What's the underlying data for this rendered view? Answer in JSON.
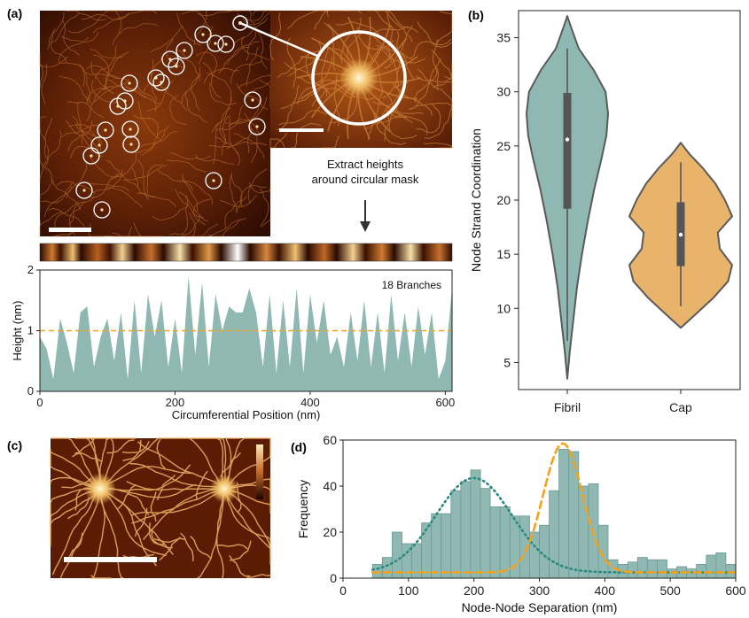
{
  "panel_labels": [
    "(a)",
    "(b)",
    "(c)",
    "(d)"
  ],
  "colors": {
    "teal": "#8fb8b3",
    "teal_dark": "#5f8a86",
    "orange": "#e8b36a",
    "dashed_orange": "#f4a21c",
    "dotted_teal": "#2a8a80",
    "afm_dark": "#3a1204",
    "afm_bright": "#f6dfa0"
  },
  "icons": {
    "arrow": "down-arrow-icon",
    "scale_bar": "scale-bar",
    "color_scale": "color-scale-bar"
  },
  "annotation": {
    "line1": "Extract heights",
    "line2": "around circular mask"
  },
  "chart_data": [
    {
      "id": "height-profile",
      "type": "area",
      "xlabel": "Circumferential Position (nm)",
      "ylabel": "Height (nm)",
      "xlim": [
        0,
        610
      ],
      "ylim": [
        0,
        2
      ],
      "xticks": [
        0,
        200,
        400,
        600
      ],
      "yticks": [
        0,
        1,
        2
      ],
      "threshold": 1,
      "annotation": "18 Branches",
      "x": [
        0,
        10,
        20,
        30,
        40,
        50,
        60,
        70,
        80,
        90,
        100,
        110,
        120,
        130,
        140,
        150,
        160,
        170,
        180,
        190,
        200,
        210,
        220,
        230,
        240,
        250,
        260,
        270,
        280,
        290,
        300,
        310,
        320,
        330,
        340,
        350,
        360,
        370,
        380,
        390,
        400,
        410,
        420,
        430,
        440,
        450,
        460,
        470,
        480,
        490,
        500,
        510,
        520,
        530,
        540,
        550,
        560,
        570,
        580,
        590,
        600,
        610
      ],
      "y": [
        0.9,
        0.7,
        0.2,
        1.2,
        0.8,
        0.3,
        1.3,
        1.4,
        0.4,
        0.9,
        1.2,
        0.5,
        1.3,
        0.2,
        1.5,
        0.3,
        1.6,
        0.9,
        1.5,
        0.4,
        1.2,
        0.3,
        1.9,
        0.6,
        1.8,
        0.4,
        1.6,
        1.0,
        1.4,
        1.3,
        1.3,
        1.7,
        1.3,
        0.4,
        1.6,
        0.3,
        1.5,
        0.4,
        1.7,
        0.3,
        1.6,
        0.8,
        1.5,
        0.6,
        0.9,
        0.4,
        1.3,
        0.5,
        1.5,
        0.4,
        1.3,
        0.3,
        1.6,
        0.5,
        1.3,
        0.4,
        1.4,
        0.6,
        1.3,
        0.2,
        0.5,
        1.7
      ]
    },
    {
      "id": "violin",
      "type": "violin",
      "ylabel": "Node Strand Coordination",
      "ylim": [
        2.5,
        37.5
      ],
      "yticks": [
        5,
        10,
        15,
        20,
        25,
        30,
        35
      ],
      "categories": [
        "Fibril",
        "Cap"
      ],
      "series": [
        {
          "name": "Fibril",
          "min": 3.5,
          "max": 37,
          "whisker_low": 7,
          "whisker_high": 34,
          "q1": 19.2,
          "q3": 29.9,
          "median": 25.6,
          "density_y": [
            3.5,
            6,
            9,
            12,
            15,
            18,
            21,
            24,
            26,
            28,
            30,
            32,
            34,
            36,
            37
          ],
          "density_w": [
            0.0,
            0.06,
            0.15,
            0.24,
            0.36,
            0.5,
            0.66,
            0.85,
            0.96,
            1.0,
            0.94,
            0.65,
            0.28,
            0.09,
            0.0
          ]
        },
        {
          "name": "Cap",
          "min": 8.2,
          "max": 25.3,
          "whisker_low": 10.2,
          "whisker_high": 23.5,
          "q1": 13.9,
          "q3": 19.8,
          "median": 16.8,
          "density_y": [
            8.2,
            9.5,
            11,
            12.5,
            14,
            15.5,
            17,
            18.5,
            20,
            21.5,
            23,
            24.3,
            25.3
          ],
          "density_w": [
            0.0,
            0.3,
            0.64,
            0.92,
            1.0,
            0.76,
            0.72,
            1.0,
            0.86,
            0.68,
            0.42,
            0.16,
            0.0
          ]
        }
      ]
    },
    {
      "id": "histogram",
      "type": "bar",
      "xlabel": "Node-Node Separation (nm)",
      "ylabel": "Frequency",
      "xlim": [
        0,
        600
      ],
      "ylim": [
        0,
        60
      ],
      "xticks": [
        0,
        100,
        200,
        300,
        400,
        500,
        600
      ],
      "yticks": [
        0,
        20,
        40,
        60
      ],
      "bin_width": 15,
      "bins_start": [
        45,
        60,
        75,
        90,
        105,
        120,
        135,
        150,
        165,
        180,
        195,
        210,
        225,
        240,
        255,
        270,
        285,
        300,
        315,
        330,
        345,
        360,
        375,
        390,
        405,
        420,
        435,
        450,
        465,
        480,
        495,
        510,
        525,
        540,
        555,
        570,
        585
      ],
      "values": [
        6,
        9,
        20,
        15,
        15,
        24,
        28,
        28,
        38,
        42,
        47,
        39,
        31,
        31,
        27,
        27,
        20,
        23,
        38,
        56,
        55,
        40,
        41,
        23,
        8,
        6,
        7,
        9,
        8,
        8,
        4,
        5,
        4,
        6,
        10,
        11,
        6
      ],
      "fits": [
        {
          "style": "dotted",
          "amplitude": 41,
          "center": 200,
          "sigma": 58
        },
        {
          "style": "dashed",
          "amplitude": 56,
          "center": 336,
          "sigma": 30
        }
      ]
    }
  ]
}
